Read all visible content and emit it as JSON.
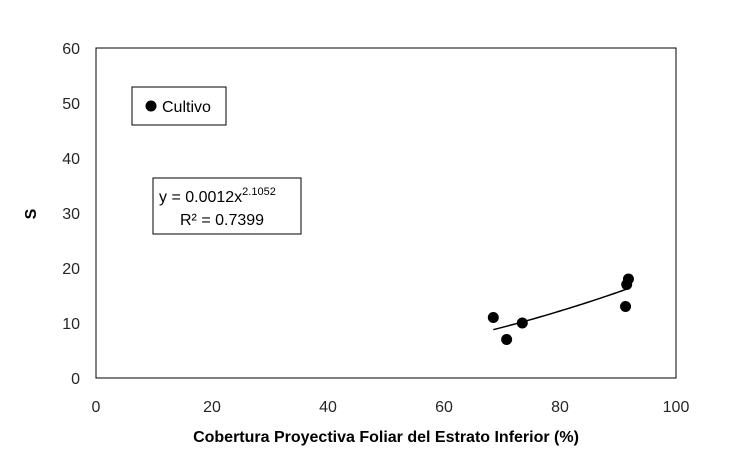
{
  "chart_data": {
    "type": "scatter",
    "xlabel": "Cobertura Proyectiva Foliar del Estrato Inferior (%)",
    "ylabel": "S",
    "xlim": [
      0,
      100
    ],
    "ylim": [
      0,
      60
    ],
    "x_ticks": [
      "0",
      "20",
      "40",
      "60",
      "80",
      "100"
    ],
    "y_ticks": [
      "0",
      "10",
      "20",
      "30",
      "40",
      "50",
      "60"
    ],
    "grid": false,
    "legend_position": "top-left",
    "series": [
      {
        "name": "Cultivo",
        "color": "#000000",
        "points": [
          {
            "x": 68.5,
            "y": 11
          },
          {
            "x": 70.8,
            "y": 7
          },
          {
            "x": 73.5,
            "y": 10
          },
          {
            "x": 91.3,
            "y": 13
          },
          {
            "x": 91.5,
            "y": 17
          },
          {
            "x": 91.8,
            "y": 18
          }
        ]
      }
    ],
    "trendline": {
      "type": "power",
      "coefficient": 0.0012,
      "exponent": 2.1052,
      "x_range": [
        68.5,
        91.8
      ],
      "equation_prefix": "y = 0.0012x",
      "equation_exponent": "2.1052",
      "r_squared": "R² = 0.7399"
    }
  }
}
